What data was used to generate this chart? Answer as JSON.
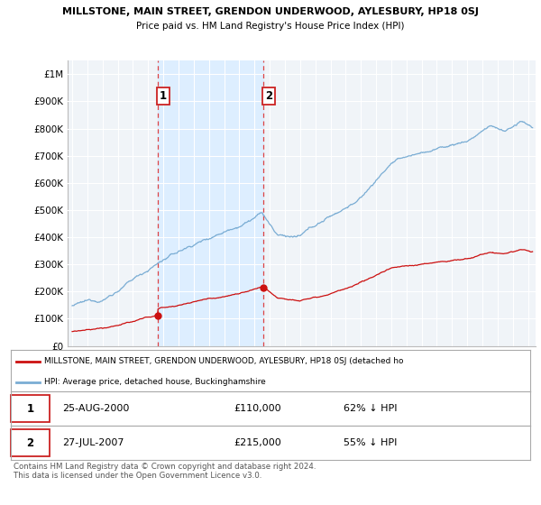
{
  "title": "MILLSTONE, MAIN STREET, GRENDON UNDERWOOD, AYLESBURY, HP18 0SJ",
  "subtitle": "Price paid vs. HM Land Registry's House Price Index (HPI)",
  "hpi_color": "#7aadd4",
  "price_color": "#cc1111",
  "marker_color": "#cc1111",
  "dashed_line_color": "#dd4444",
  "shade_color": "#ddeeff",
  "background_color": "#ffffff",
  "plot_bg_color": "#f0f4f8",
  "grid_color": "#ffffff",
  "ylim": [
    0,
    1050000
  ],
  "yticks": [
    0,
    100000,
    200000,
    300000,
    400000,
    500000,
    600000,
    700000,
    800000,
    900000,
    1000000
  ],
  "ytick_labels": [
    "£0",
    "£100K",
    "£200K",
    "£300K",
    "£400K",
    "£500K",
    "£600K",
    "£700K",
    "£800K",
    "£900K",
    "£1M"
  ],
  "sale1_year": 2000.65,
  "sale1_price": 110000,
  "sale2_year": 2007.58,
  "sale2_price": 215000,
  "legend_property": "MILLSTONE, MAIN STREET, GRENDON UNDERWOOD, AYLESBURY, HP18 0SJ (detached ho",
  "legend_hpi": "HPI: Average price, detached house, Buckinghamshire",
  "footer": "Contains HM Land Registry data © Crown copyright and database right 2024.\nThis data is licensed under the Open Government Licence v3.0.",
  "xmin": 1994.7,
  "xmax": 2025.5
}
